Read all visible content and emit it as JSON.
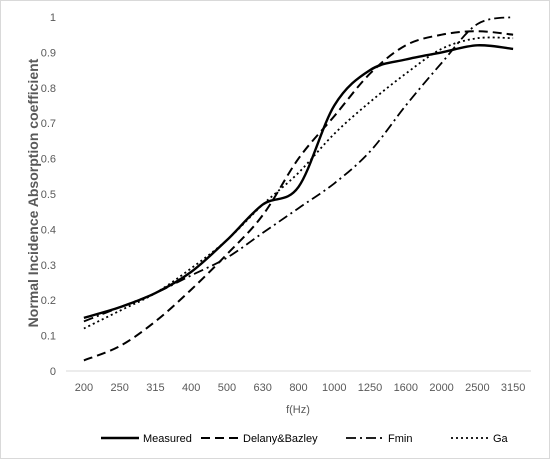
{
  "chart_data": {
    "type": "line",
    "title": "",
    "xlabel": "f(Hz)",
    "ylabel": "Normal Incidence Absorption coefficient",
    "categories": [
      "200",
      "250",
      "315",
      "400",
      "500",
      "630",
      "800",
      "1000",
      "1250",
      "1600",
      "2000",
      "2500",
      "3150"
    ],
    "ylim": [
      0,
      1
    ],
    "yticks": [
      0,
      0.1,
      0.2,
      0.3,
      0.4,
      0.5,
      0.6,
      0.7,
      0.8,
      0.9,
      1
    ],
    "ytick_labels": [
      "0",
      "0.1",
      "0.2",
      "0.3",
      "0.4",
      "0.5",
      "0.6",
      "0.7",
      "0.8",
      "0.9",
      "1"
    ],
    "grid": false,
    "legend_position": "bottom",
    "series": [
      {
        "name": "Measured",
        "style": "solid",
        "color": "#000000",
        "values": [
          0.15,
          0.18,
          0.22,
          0.28,
          0.37,
          0.47,
          0.52,
          0.75,
          0.85,
          0.88,
          0.9,
          0.92,
          0.91
        ]
      },
      {
        "name": "Delany&Bazley",
        "style": "dash",
        "color": "#000000",
        "values": [
          0.03,
          0.07,
          0.14,
          0.23,
          0.33,
          0.44,
          0.6,
          0.72,
          0.84,
          0.92,
          0.95,
          0.96,
          0.95
        ]
      },
      {
        "name": "Fmin",
        "style": "dashdot",
        "color": "#000000",
        "values": [
          0.14,
          0.18,
          0.22,
          0.27,
          0.32,
          0.39,
          0.46,
          0.53,
          0.62,
          0.75,
          0.87,
          0.98,
          1.0
        ]
      },
      {
        "name": "Ga",
        "style": "dot",
        "color": "#000000",
        "values": [
          0.12,
          0.17,
          0.22,
          0.29,
          0.37,
          0.47,
          0.56,
          0.67,
          0.76,
          0.84,
          0.91,
          0.94,
          0.94
        ]
      }
    ]
  }
}
